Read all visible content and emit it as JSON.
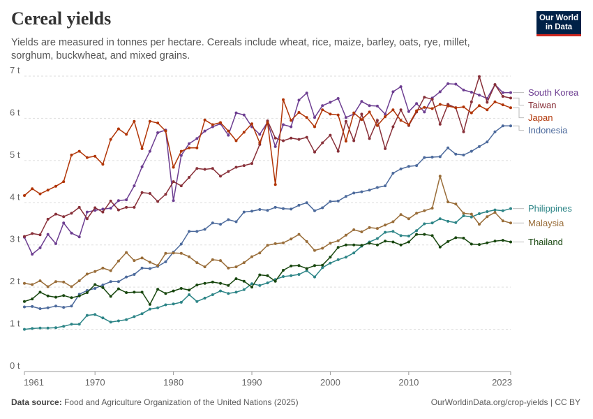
{
  "header": {
    "title": "Cereal yields",
    "subtitle": "Yields are measured in tonnes per hectare. Cereals include wheat, rice, maize, barley, oats, rye, millet, sorghum, buckwheat, and mixed grains.",
    "logo_line1": "Our World",
    "logo_line2": "in Data"
  },
  "footer": {
    "source_label": "Data source:",
    "source_text": "Food and Agriculture Organization of the United Nations (2025)",
    "credit": "OurWorldinData.org/crop-yields | CC BY"
  },
  "colors": {
    "brand": "#002147",
    "brand_accent": "#ce261e",
    "grid": "#dddddd",
    "axis": "#999999"
  },
  "chart_data": {
    "type": "line",
    "title": "Cereal yields",
    "xlabel": "",
    "ylabel": "",
    "unit": "t",
    "xlim": [
      1961,
      2023
    ],
    "ylim": [
      0,
      7
    ],
    "grid": true,
    "x_ticks": [
      1961,
      1970,
      1980,
      1990,
      2000,
      2010,
      2023
    ],
    "y_ticks": [
      0,
      1,
      2,
      3,
      4,
      5,
      6,
      7
    ],
    "y_tick_labels": [
      "0 t",
      "1 t",
      "2 t",
      "3 t",
      "4 t",
      "5 t",
      "6 t",
      "7 t"
    ],
    "legend": "right",
    "x_start": 1961,
    "series": [
      {
        "name": "South Korea",
        "color": "#6d3e91",
        "values": [
          3.18,
          2.78,
          2.93,
          3.25,
          3.03,
          3.52,
          3.28,
          3.19,
          3.78,
          3.82,
          3.85,
          3.87,
          4.05,
          4.07,
          4.4,
          4.85,
          5.22,
          5.66,
          5.72,
          4.05,
          5.12,
          5.4,
          5.52,
          5.7,
          5.8,
          5.87,
          5.6,
          6.13,
          6.08,
          5.8,
          5.62,
          5.91,
          5.33,
          5.85,
          5.8,
          6.43,
          6.6,
          6.02,
          6.3,
          6.38,
          6.47,
          6.02,
          6.1,
          6.4,
          6.3,
          6.29,
          6.1,
          6.63,
          6.75,
          6.16,
          6.35,
          6.15,
          6.48,
          6.63,
          6.82,
          6.81,
          6.67,
          6.62,
          6.55,
          6.47,
          6.8,
          6.61,
          6.61
        ]
      },
      {
        "name": "Taiwan",
        "color": "#883039",
        "values": [
          3.2,
          3.27,
          3.24,
          3.61,
          3.73,
          3.67,
          3.75,
          3.89,
          3.62,
          3.88,
          3.78,
          4.04,
          3.83,
          3.89,
          3.89,
          4.24,
          4.22,
          4.03,
          4.2,
          4.5,
          4.4,
          4.6,
          4.81,
          4.79,
          4.81,
          4.63,
          4.74,
          4.84,
          4.88,
          4.93,
          5.38,
          5.94,
          5.53,
          5.47,
          5.53,
          5.5,
          5.55,
          5.2,
          5.42,
          5.6,
          5.22,
          5.93,
          5.47,
          6.1,
          5.52,
          5.95,
          5.28,
          5.8,
          6.2,
          5.83,
          6.15,
          6.5,
          6.45,
          5.86,
          6.33,
          6.25,
          5.68,
          6.39,
          6.99,
          6.38,
          6.8,
          6.52,
          6.48
        ]
      },
      {
        "name": "Japan",
        "color": "#b13507",
        "values": [
          4.17,
          4.33,
          4.21,
          4.3,
          4.39,
          4.5,
          5.13,
          5.22,
          5.07,
          5.1,
          4.91,
          5.5,
          5.75,
          5.62,
          5.93,
          5.28,
          5.93,
          5.89,
          5.7,
          4.84,
          5.22,
          5.3,
          5.3,
          5.96,
          5.85,
          5.9,
          5.7,
          5.47,
          5.67,
          5.87,
          5.42,
          5.9,
          4.43,
          6.44,
          5.95,
          6.14,
          6.02,
          5.8,
          6.2,
          6.1,
          6.08,
          5.46,
          6.13,
          5.97,
          6.15,
          5.83,
          6.04,
          6.2,
          5.95,
          5.85,
          6.18,
          6.26,
          6.23,
          6.33,
          6.29,
          6.25,
          6.27,
          6.13,
          6.3,
          6.2,
          6.39,
          6.32,
          6.25
        ]
      },
      {
        "name": "Indonesia",
        "color": "#4c6a9c",
        "values": [
          1.53,
          1.54,
          1.49,
          1.51,
          1.55,
          1.52,
          1.55,
          1.83,
          1.92,
          1.97,
          2.05,
          2.13,
          2.13,
          2.24,
          2.3,
          2.45,
          2.44,
          2.49,
          2.6,
          2.83,
          3.02,
          3.32,
          3.32,
          3.37,
          3.52,
          3.49,
          3.6,
          3.55,
          3.78,
          3.8,
          3.84,
          3.82,
          3.89,
          3.86,
          3.85,
          3.94,
          4.0,
          3.81,
          3.88,
          4.03,
          4.04,
          4.15,
          4.23,
          4.26,
          4.3,
          4.36,
          4.4,
          4.7,
          4.8,
          4.86,
          4.88,
          5.07,
          5.08,
          5.09,
          5.3,
          5.15,
          5.13,
          5.22,
          5.33,
          5.44,
          5.68,
          5.82,
          5.82
        ]
      },
      {
        "name": "Philippines",
        "color": "#2d8587",
        "values": [
          1.0,
          1.02,
          1.03,
          1.03,
          1.04,
          1.07,
          1.12,
          1.12,
          1.33,
          1.35,
          1.27,
          1.17,
          1.2,
          1.23,
          1.3,
          1.37,
          1.48,
          1.51,
          1.58,
          1.6,
          1.64,
          1.82,
          1.66,
          1.74,
          1.82,
          1.91,
          1.85,
          1.88,
          1.94,
          2.08,
          2.04,
          2.1,
          2.18,
          2.25,
          2.27,
          2.3,
          2.39,
          2.24,
          2.46,
          2.57,
          2.65,
          2.71,
          2.81,
          2.97,
          3.07,
          3.15,
          3.3,
          3.32,
          3.22,
          3.21,
          3.34,
          3.5,
          3.52,
          3.62,
          3.56,
          3.53,
          3.69,
          3.66,
          3.74,
          3.79,
          3.83,
          3.81,
          3.86
        ]
      },
      {
        "name": "Malaysia",
        "color": "#996d39",
        "values": [
          2.09,
          2.06,
          2.15,
          2.01,
          2.13,
          2.12,
          2.01,
          2.15,
          2.31,
          2.37,
          2.45,
          2.39,
          2.62,
          2.82,
          2.63,
          2.69,
          2.59,
          2.51,
          2.8,
          2.81,
          2.8,
          2.72,
          2.58,
          2.48,
          2.65,
          2.63,
          2.45,
          2.48,
          2.58,
          2.72,
          2.81,
          2.99,
          3.03,
          3.05,
          3.14,
          3.25,
          3.08,
          2.87,
          2.92,
          3.04,
          3.1,
          3.23,
          3.36,
          3.31,
          3.41,
          3.39,
          3.47,
          3.55,
          3.72,
          3.62,
          3.75,
          3.81,
          3.87,
          4.63,
          4.02,
          3.97,
          3.75,
          3.73,
          3.49,
          3.67,
          3.77,
          3.57,
          3.52
        ]
      },
      {
        "name": "Thailand",
        "color": "#18470f",
        "values": [
          1.66,
          1.72,
          1.88,
          1.79,
          1.76,
          1.8,
          1.75,
          1.79,
          1.87,
          2.06,
          1.99,
          1.78,
          1.96,
          1.87,
          1.88,
          1.88,
          1.59,
          1.95,
          1.85,
          1.91,
          1.97,
          1.93,
          2.05,
          2.09,
          2.12,
          2.09,
          2.04,
          2.2,
          2.14,
          2.0,
          2.29,
          2.27,
          2.14,
          2.4,
          2.5,
          2.51,
          2.44,
          2.51,
          2.52,
          2.71,
          2.94,
          3.0,
          3.0,
          2.99,
          3.04,
          3.0,
          3.09,
          3.07,
          3.0,
          3.07,
          3.25,
          3.25,
          3.22,
          2.95,
          3.08,
          3.17,
          3.16,
          3.02,
          3.01,
          3.05,
          3.09,
          3.11,
          3.07
        ]
      }
    ],
    "series_label_colors": {
      "South Korea": "#6d3e91",
      "Taiwan": "#883039",
      "Japan": "#b13507",
      "Indonesia": "#4c6a9c",
      "Philippines": "#2d8587",
      "Malaysia": "#996d39",
      "Thailand": "#18470f"
    }
  }
}
